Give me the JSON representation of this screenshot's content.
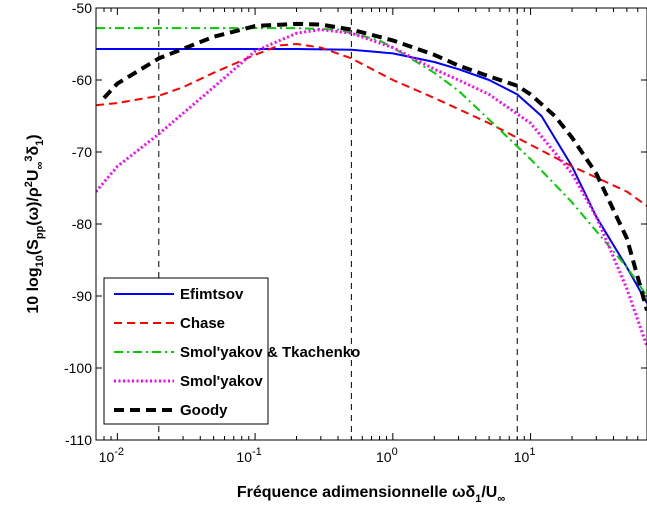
{
  "chart_data": {
    "type": "line",
    "xscale": "log",
    "xlim": [
      0.007,
      70
    ],
    "ylim": [
      -110,
      -50
    ],
    "grid": false,
    "legend_position": "bottom-left",
    "xlabel_parts": {
      "main": "Fréquence adimensionnelle ωδ",
      "sub1": "1",
      "mid": "/U",
      "sub2": "∞"
    },
    "ylabel_parts": [
      {
        "t": "10 log",
        "s": "normal"
      },
      {
        "t": "10",
        "s": "sub"
      },
      {
        "t": "(S",
        "s": "normal"
      },
      {
        "t": "pp",
        "s": "sub"
      },
      {
        "t": "(ω)/ρ",
        "s": "normal"
      },
      {
        "t": "2",
        "s": "sup"
      },
      {
        "t": "U",
        "s": "normal"
      },
      {
        "t": "∞",
        "s": "sub"
      },
      {
        "t": "3",
        "s": "sup"
      },
      {
        "t": "δ",
        "s": "normal"
      },
      {
        "t": "1",
        "s": "sub"
      },
      {
        "t": ")",
        "s": "normal"
      }
    ],
    "x_ticks": [
      {
        "value": 0.01,
        "base": "10",
        "exp": "-2"
      },
      {
        "value": 0.1,
        "base": "10",
        "exp": "-1"
      },
      {
        "value": 1,
        "base": "10",
        "exp": "0"
      },
      {
        "value": 10,
        "base": "10",
        "exp": "1"
      }
    ],
    "y_ticks": [
      {
        "value": -50,
        "label": "-50"
      },
      {
        "value": -60,
        "label": "-60"
      },
      {
        "value": -70,
        "label": "-70"
      },
      {
        "value": -80,
        "label": "-80"
      },
      {
        "value": -90,
        "label": "-90"
      },
      {
        "value": -100,
        "label": "-100"
      },
      {
        "value": -110,
        "label": "-110"
      }
    ],
    "vlines": [
      0.02,
      0.5,
      8
    ],
    "series": [
      {
        "name": "Efimtsov",
        "color": "#0000ff",
        "dash": "solid",
        "width": 2,
        "x": [
          0.007,
          0.05,
          0.2,
          0.5,
          1,
          2,
          3,
          5,
          8,
          12,
          20,
          30,
          50,
          70
        ],
        "y": [
          -55.7,
          -55.7,
          -55.7,
          -55.8,
          -56.3,
          -57.5,
          -58.5,
          -60,
          -62,
          -65,
          -72,
          -79,
          -86,
          -91
        ]
      },
      {
        "name": "Chase",
        "color": "#ff0000",
        "dash": "dashed",
        "width": 2,
        "x": [
          0.007,
          0.01,
          0.02,
          0.03,
          0.05,
          0.1,
          0.15,
          0.2,
          0.3,
          0.5,
          1,
          2,
          5,
          10,
          20,
          50,
          70
        ],
        "y": [
          -63.5,
          -63.2,
          -62.2,
          -61,
          -59,
          -56.5,
          -55.2,
          -55,
          -55.5,
          -57,
          -60,
          -62.5,
          -66,
          -69,
          -72,
          -75.5,
          -77.5
        ]
      },
      {
        "name": "Smol'yakov & Tkachenko",
        "color": "#00cc00",
        "dash": "dashdot",
        "width": 2,
        "x": [
          0.007,
          0.05,
          0.1,
          0.2,
          0.4,
          0.8,
          1,
          2,
          3,
          5,
          10,
          20,
          30,
          50,
          70
        ],
        "y": [
          -52.8,
          -52.8,
          -52.8,
          -52.8,
          -53,
          -54.5,
          -55.5,
          -59,
          -61.5,
          -65.5,
          -71,
          -77,
          -81,
          -86,
          -90
        ]
      },
      {
        "name": "Smol'yakov",
        "color": "#ff00ff",
        "dash": "dotted",
        "width": 3,
        "x": [
          0.007,
          0.01,
          0.02,
          0.05,
          0.1,
          0.2,
          0.3,
          0.5,
          1,
          2,
          3,
          5,
          10,
          20,
          30,
          50,
          70
        ],
        "y": [
          -75.5,
          -72,
          -67.5,
          -61,
          -56,
          -53.5,
          -53,
          -53.5,
          -55.5,
          -58.5,
          -60,
          -62,
          -66,
          -73,
          -79,
          -89,
          -97
        ]
      },
      {
        "name": "Goody",
        "color": "#000000",
        "dash": "bigdash",
        "width": 4,
        "x": [
          0.008,
          0.01,
          0.02,
          0.05,
          0.1,
          0.2,
          0.3,
          0.5,
          1,
          2,
          3,
          5,
          8,
          10,
          15,
          20,
          30,
          50,
          70
        ],
        "y": [
          -62.5,
          -60.5,
          -57,
          -54,
          -52.5,
          -52.2,
          -52.3,
          -53,
          -54.5,
          -56.5,
          -58,
          -59.5,
          -60.8,
          -62,
          -65,
          -68,
          -73,
          -82,
          -92
        ]
      }
    ]
  }
}
